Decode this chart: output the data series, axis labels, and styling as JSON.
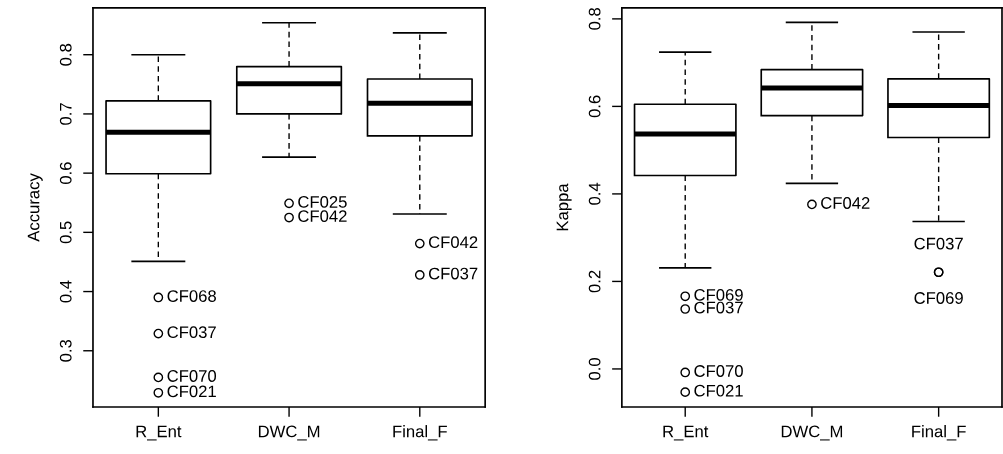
{
  "chart_data": [
    {
      "type": "box",
      "ylabel": "Accuracy",
      "categories": [
        "R_Ent",
        "DWC_M",
        "Final_F"
      ],
      "boxes": [
        {
          "low": 0.451,
          "q1": 0.599,
          "median": 0.669,
          "q3": 0.722,
          "high": 0.8
        },
        {
          "low": 0.627,
          "q1": 0.7,
          "median": 0.751,
          "q3": 0.78,
          "high": 0.854
        },
        {
          "low": 0.531,
          "q1": 0.663,
          "median": 0.718,
          "q3": 0.759,
          "high": 0.837
        }
      ],
      "series": [
        {
          "type": "scatter",
          "marker": "circle",
          "color": "#000000",
          "x": [
            "R_Ent",
            "R_Ent",
            "R_Ent",
            "R_Ent",
            "DWC_M",
            "DWC_M",
            "Final_F",
            "Final_F"
          ],
          "values": [
            0.39,
            0.329,
            0.255,
            0.229,
            0.549,
            0.525,
            0.481,
            0.428
          ]
        }
      ],
      "ylim": [
        0.205,
        0.879
      ],
      "yticks": [
        0.3,
        0.4,
        0.5,
        0.6,
        0.7,
        0.8
      ],
      "grid": false,
      "color": "#000000",
      "annotations": [
        {
          "text": "CF068",
          "x": "R_Ent",
          "y": 0.39
        },
        {
          "text": "CF037",
          "x": "R_Ent",
          "y": 0.329
        },
        {
          "text": "CF070",
          "x": "R_Ent",
          "y": 0.255
        },
        {
          "text": "CF021",
          "x": "R_Ent",
          "y": 0.229
        },
        {
          "text": "CF025",
          "x": "DWC_M",
          "y": 0.549
        },
        {
          "text": "CF042",
          "x": "DWC_M",
          "y": 0.525
        },
        {
          "text": "CF042",
          "x": "Final_F",
          "y": 0.481
        },
        {
          "text": "CF037",
          "x": "Final_F",
          "y": 0.428
        }
      ]
    },
    {
      "type": "box",
      "ylabel": "Kappa",
      "categories": [
        "R_Ent",
        "DWC_M",
        "Final_F"
      ],
      "boxes": [
        {
          "low": 0.231,
          "q1": 0.442,
          "median": 0.537,
          "q3": 0.605,
          "high": 0.724
        },
        {
          "low": 0.424,
          "q1": 0.579,
          "median": 0.642,
          "q3": 0.684,
          "high": 0.792
        },
        {
          "low": 0.337,
          "q1": 0.529,
          "median": 0.602,
          "q3": 0.663,
          "high": 0.77
        }
      ],
      "series": [
        {
          "type": "scatter",
          "marker": "circle",
          "color": "#000000",
          "x": [
            "R_Ent",
            "R_Ent",
            "R_Ent",
            "R_Ent",
            "DWC_M",
            "Final_F",
            "Final_F"
          ],
          "values": [
            0.166,
            0.137,
            -0.008,
            -0.053,
            0.376,
            0.221,
            0.221
          ]
        }
      ],
      "ylim": [
        -0.087,
        0.825
      ],
      "yticks": [
        {
          "value": 0,
          "label": "0.0"
        },
        0.2,
        0.4,
        0.6,
        0.8
      ],
      "grid": false,
      "color": "#000000",
      "annotations": [
        {
          "text": "CF069",
          "x": "R_Ent",
          "y": 0.166
        },
        {
          "text": "CF037",
          "x": "R_Ent",
          "y": 0.137
        },
        {
          "text": "CF070",
          "x": "R_Ent",
          "y": -0.008
        },
        {
          "text": "CF021",
          "x": "R_Ent",
          "y": -0.053
        },
        {
          "text": "CF042",
          "x": "DWC_M",
          "y": 0.376
        },
        {
          "text": "CF037",
          "x": "Final_F",
          "y": 0.221
        },
        {
          "text": "CF069",
          "x": "Final_F",
          "y": 0.221
        }
      ]
    }
  ]
}
